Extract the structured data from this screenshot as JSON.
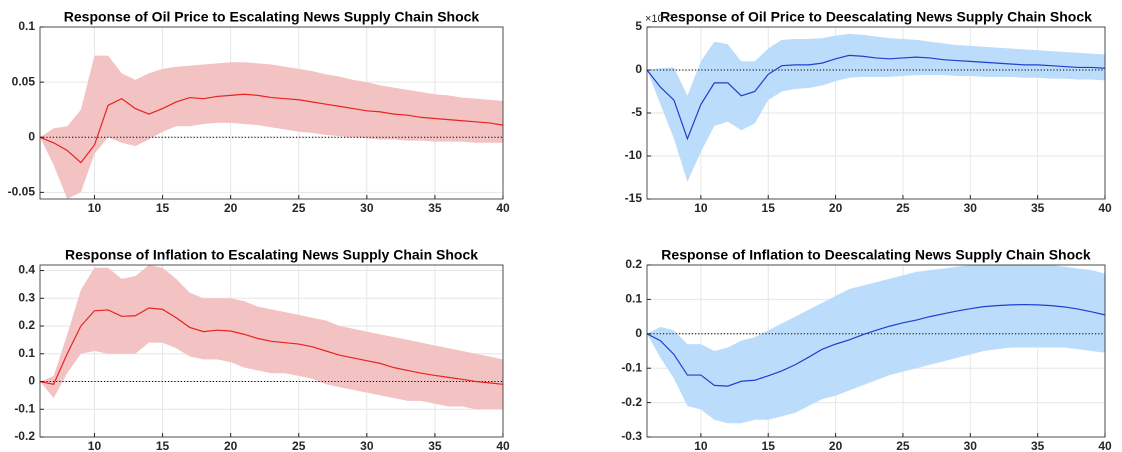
{
  "chart_data": [
    {
      "type": "line",
      "title": "Response of Oil Price to Escalating News Supply Chain Shock",
      "x": [
        6,
        7,
        8,
        9,
        10,
        11,
        12,
        13,
        14,
        15,
        16,
        17,
        18,
        19,
        20,
        21,
        22,
        23,
        24,
        25,
        26,
        27,
        28,
        29,
        30,
        31,
        32,
        33,
        34,
        35,
        36,
        37,
        38,
        39,
        40
      ],
      "values": [
        0,
        -0.005,
        -0.012,
        -0.023,
        -0.007,
        0.029,
        0.035,
        0.026,
        0.021,
        0.026,
        0.032,
        0.036,
        0.035,
        0.037,
        0.038,
        0.039,
        0.038,
        0.036,
        0.035,
        0.034,
        0.032,
        0.03,
        0.028,
        0.026,
        0.024,
        0.023,
        0.021,
        0.02,
        0.018,
        0.017,
        0.016,
        0.015,
        0.014,
        0.013,
        0.011
      ],
      "band_upper": [
        0,
        0.008,
        0.01,
        0.025,
        0.074,
        0.074,
        0.058,
        0.052,
        0.058,
        0.062,
        0.064,
        0.065,
        0.066,
        0.067,
        0.068,
        0.068,
        0.067,
        0.066,
        0.064,
        0.062,
        0.06,
        0.057,
        0.055,
        0.052,
        0.05,
        0.047,
        0.045,
        0.043,
        0.041,
        0.039,
        0.038,
        0.036,
        0.035,
        0.034,
        0.033
      ],
      "band_lower": [
        0,
        -0.025,
        -0.056,
        -0.05,
        -0.015,
        0,
        -0.005,
        -0.008,
        -0.002,
        0.005,
        0.01,
        0.01,
        0.012,
        0.013,
        0.013,
        0.012,
        0.011,
        0.009,
        0.007,
        0.005,
        0.004,
        0.002,
        0.001,
        0,
        -0.001,
        -0.002,
        -0.002,
        -0.003,
        -0.003,
        -0.004,
        -0.004,
        -0.004,
        -0.005,
        -0.005,
        -0.005
      ],
      "color": "#e8231f",
      "band_color": "#f3c3c4",
      "xlim": [
        6,
        40
      ],
      "xticks": [
        10,
        15,
        20,
        25,
        30,
        35,
        40
      ],
      "ylim": [
        -0.056,
        0.1
      ],
      "yticks": [
        -0.05,
        0,
        0.05,
        0.1
      ],
      "grid": true,
      "zero_line": true
    },
    {
      "type": "line",
      "title": "Response of Oil Price to Deescalating News Supply Chain Shock",
      "y_exponent_label": "×10⁻³",
      "x": [
        6,
        7,
        8,
        9,
        10,
        11,
        12,
        13,
        14,
        15,
        16,
        17,
        18,
        19,
        20,
        21,
        22,
        23,
        24,
        25,
        26,
        27,
        28,
        29,
        30,
        31,
        32,
        33,
        34,
        35,
        36,
        37,
        38,
        39,
        40
      ],
      "values": [
        0,
        -2,
        -3.5,
        -8,
        -4,
        -1.5,
        -1.5,
        -3,
        -2.5,
        -0.5,
        0.5,
        0.6,
        0.6,
        0.8,
        1.3,
        1.7,
        1.6,
        1.4,
        1.3,
        1.4,
        1.5,
        1.4,
        1.2,
        1.1,
        1.0,
        0.9,
        0.8,
        0.7,
        0.6,
        0.6,
        0.5,
        0.4,
        0.3,
        0.3,
        0.2
      ],
      "band_upper": [
        0,
        0.2,
        0.3,
        -3,
        1,
        3.3,
        3,
        1,
        1,
        2.5,
        3.5,
        3.6,
        3.6,
        3.7,
        4,
        4.2,
        4.1,
        3.9,
        3.7,
        3.6,
        3.5,
        3.3,
        3.1,
        2.9,
        2.8,
        2.7,
        2.6,
        2.5,
        2.4,
        2.3,
        2.2,
        2.1,
        2.0,
        1.9,
        1.8
      ],
      "band_lower": [
        0,
        -4,
        -8,
        -13,
        -9.5,
        -6.5,
        -6,
        -7,
        -6.2,
        -3.5,
        -2.5,
        -2.2,
        -2.1,
        -1.8,
        -1.3,
        -0.9,
        -0.8,
        -0.8,
        -0.8,
        -0.7,
        -0.6,
        -0.6,
        -0.6,
        -0.7,
        -0.7,
        -0.8,
        -0.8,
        -0.8,
        -0.9,
        -0.9,
        -1.0,
        -1.0,
        -1.1,
        -1.1,
        -1.2
      ],
      "color": "#1f3fd0",
      "band_color": "#bcdcfb",
      "xlim": [
        6,
        40
      ],
      "xticks": [
        10,
        15,
        20,
        25,
        30,
        35,
        40
      ],
      "ylim": [
        -15,
        5
      ],
      "yticks": [
        -15,
        -10,
        -5,
        0,
        5
      ],
      "grid": true,
      "zero_line": true
    },
    {
      "type": "line",
      "title": "Response of Inflation to Escalating News Supply Chain Shock",
      "x": [
        6,
        7,
        8,
        9,
        10,
        11,
        12,
        13,
        14,
        15,
        16,
        17,
        18,
        19,
        20,
        21,
        22,
        23,
        24,
        25,
        26,
        27,
        28,
        29,
        30,
        31,
        32,
        33,
        34,
        35,
        36,
        37,
        38,
        39,
        40
      ],
      "values": [
        0,
        -0.01,
        0.1,
        0.2,
        0.255,
        0.258,
        0.235,
        0.237,
        0.265,
        0.26,
        0.23,
        0.195,
        0.18,
        0.185,
        0.182,
        0.17,
        0.155,
        0.145,
        0.14,
        0.135,
        0.125,
        0.11,
        0.095,
        0.085,
        0.075,
        0.065,
        0.05,
        0.04,
        0.03,
        0.022,
        0.015,
        0.008,
        0.0,
        -0.005,
        -0.01
      ],
      "band_upper": [
        0,
        0.02,
        0.17,
        0.33,
        0.41,
        0.41,
        0.37,
        0.38,
        0.42,
        0.41,
        0.37,
        0.32,
        0.3,
        0.3,
        0.3,
        0.29,
        0.27,
        0.26,
        0.25,
        0.24,
        0.23,
        0.22,
        0.2,
        0.19,
        0.18,
        0.17,
        0.16,
        0.15,
        0.14,
        0.13,
        0.12,
        0.11,
        0.1,
        0.09,
        0.08
      ],
      "band_lower": [
        0,
        -0.06,
        0.03,
        0.1,
        0.11,
        0.1,
        0.1,
        0.1,
        0.14,
        0.14,
        0.12,
        0.09,
        0.08,
        0.08,
        0.07,
        0.05,
        0.04,
        0.03,
        0.03,
        0.02,
        0.01,
        -0.01,
        -0.02,
        -0.03,
        -0.04,
        -0.05,
        -0.06,
        -0.07,
        -0.07,
        -0.08,
        -0.09,
        -0.09,
        -0.1,
        -0.1,
        -0.1
      ],
      "color": "#e8231f",
      "band_color": "#f3c3c4",
      "xlim": [
        6,
        40
      ],
      "xticks": [
        10,
        15,
        20,
        25,
        30,
        35,
        40
      ],
      "ylim": [
        -0.2,
        0.42
      ],
      "yticks": [
        -0.2,
        -0.1,
        0,
        0.1,
        0.2,
        0.3,
        0.4
      ],
      "grid": true,
      "zero_line": true
    },
    {
      "type": "line",
      "title": "Response of Inflation to Deescalating News Supply Chain Shock",
      "x": [
        6,
        7,
        8,
        9,
        10,
        11,
        12,
        13,
        14,
        15,
        16,
        17,
        18,
        19,
        20,
        21,
        22,
        23,
        24,
        25,
        26,
        27,
        28,
        29,
        30,
        31,
        32,
        33,
        34,
        35,
        36,
        37,
        38,
        39,
        40
      ],
      "values": [
        0,
        -0.02,
        -0.06,
        -0.12,
        -0.12,
        -0.15,
        -0.152,
        -0.138,
        -0.135,
        -0.122,
        -0.108,
        -0.09,
        -0.068,
        -0.045,
        -0.03,
        -0.018,
        -0.003,
        0.01,
        0.022,
        0.032,
        0.04,
        0.05,
        0.058,
        0.066,
        0.073,
        0.079,
        0.082,
        0.084,
        0.085,
        0.084,
        0.082,
        0.078,
        0.072,
        0.064,
        0.055
      ],
      "band_upper": [
        0,
        0.02,
        0.01,
        -0.03,
        -0.03,
        -0.05,
        -0.04,
        -0.02,
        -0.01,
        0.01,
        0.03,
        0.05,
        0.07,
        0.09,
        0.11,
        0.13,
        0.14,
        0.15,
        0.16,
        0.17,
        0.18,
        0.185,
        0.19,
        0.195,
        0.2,
        0.2,
        0.2,
        0.2,
        0.2,
        0.2,
        0.2,
        0.195,
        0.19,
        0.185,
        0.175
      ],
      "band_lower": [
        0,
        -0.07,
        -0.13,
        -0.21,
        -0.22,
        -0.25,
        -0.26,
        -0.26,
        -0.25,
        -0.25,
        -0.24,
        -0.23,
        -0.21,
        -0.19,
        -0.18,
        -0.165,
        -0.15,
        -0.135,
        -0.12,
        -0.11,
        -0.1,
        -0.09,
        -0.08,
        -0.07,
        -0.06,
        -0.05,
        -0.045,
        -0.04,
        -0.04,
        -0.04,
        -0.04,
        -0.04,
        -0.045,
        -0.05,
        -0.055
      ],
      "color": "#1f3fd0",
      "band_color": "#bcdcfb",
      "xlim": [
        6,
        40
      ],
      "xticks": [
        10,
        15,
        20,
        25,
        30,
        35,
        40
      ],
      "ylim": [
        -0.3,
        0.2
      ],
      "yticks": [
        -0.3,
        -0.2,
        -0.1,
        0,
        0.1,
        0.2
      ],
      "grid": true,
      "zero_line": true
    }
  ]
}
